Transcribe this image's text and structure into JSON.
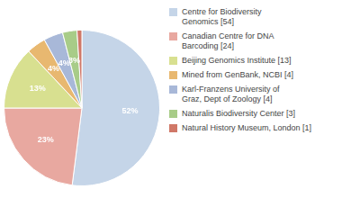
{
  "chart_data": {
    "type": "pie",
    "categories": [
      "Centre for Biodiversity\nGenomics [54]",
      "Canadian Centre for DNA\nBarcoding [24]",
      "Beijing Genomics Institute [13]",
      "Mined from GenBank, NCBI [4]",
      "Karl-Franzens University of\nGraz, Dept of Zoology [4]",
      "Naturalis Biodiversity Center [3]",
      "Natural History Museum, London [1]"
    ],
    "values": [
      52,
      23,
      13,
      4,
      4,
      3,
      1
    ],
    "value_labels": [
      "52%",
      "23%",
      "13%",
      "4%",
      "4%",
      "3%",
      null
    ],
    "colors": [
      "#c5d5e8",
      "#e8a8a0",
      "#d8e090",
      "#e8b870",
      "#a8b8d8",
      "#a8cc88",
      "#d07868"
    ],
    "data_labels": true,
    "legend": "right"
  }
}
